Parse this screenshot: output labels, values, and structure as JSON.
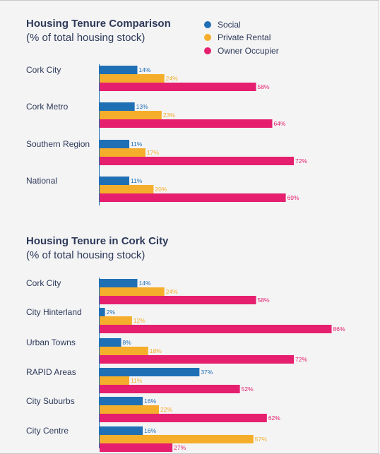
{
  "colors": {
    "social": "#1f6fb5",
    "private_rental": "#f5ae2b",
    "owner_occupier": "#e51f6e",
    "text": "#2e3a59",
    "axis": "#1f6fb5"
  },
  "chart_data": [
    {
      "type": "bar",
      "orientation": "horizontal",
      "title": "Housing Tenure Comparison",
      "subtitle": "(% of total housing stock)",
      "unit": "%",
      "legend": {
        "placement": "top-right",
        "entries": [
          "Social",
          "Private Rental",
          "Owner Occupier"
        ]
      },
      "categories": [
        "Cork City",
        "Cork Metro",
        "Southern Region",
        "National"
      ],
      "series": [
        {
          "name": "Social",
          "values": [
            14,
            13,
            11,
            11
          ]
        },
        {
          "name": "Private Rental",
          "values": [
            24,
            23,
            17,
            20
          ]
        },
        {
          "name": "Owner Occupier",
          "values": [
            58,
            64,
            72,
            69
          ]
        }
      ],
      "value_labels": [
        [
          "14%",
          "13%",
          "11%",
          "11%"
        ],
        [
          "24%",
          "23%",
          "17%",
          "20%"
        ],
        [
          "58%",
          "64%",
          "72%",
          "69%"
        ]
      ],
      "xlim": [
        0,
        100
      ],
      "grid": false
    },
    {
      "type": "bar",
      "orientation": "horizontal",
      "title": "Housing Tenure in Cork City",
      "subtitle": "(% of total housing stock)",
      "unit": "%",
      "categories": [
        "Cork City",
        "City Hinterland",
        "Urban Towns",
        "RAPID Areas",
        "City Suburbs",
        "City Centre"
      ],
      "series": [
        {
          "name": "Social",
          "values": [
            14,
            2,
            8,
            37,
            16,
            16
          ]
        },
        {
          "name": "Private Rental",
          "values": [
            24,
            12,
            18,
            11,
            22,
            57
          ]
        },
        {
          "name": "Owner Occupier",
          "values": [
            58,
            86,
            72,
            52,
            62,
            27
          ]
        }
      ],
      "value_labels": [
        [
          "14%",
          "2%",
          "8%",
          "37%",
          "16%",
          "16%"
        ],
        [
          "24%",
          "12%",
          "18%",
          "11%",
          "22%",
          "57%"
        ],
        [
          "58%",
          "86%",
          "72%",
          "52%",
          "62%",
          "27%"
        ]
      ],
      "xlim": [
        0,
        100
      ],
      "grid": false
    }
  ]
}
